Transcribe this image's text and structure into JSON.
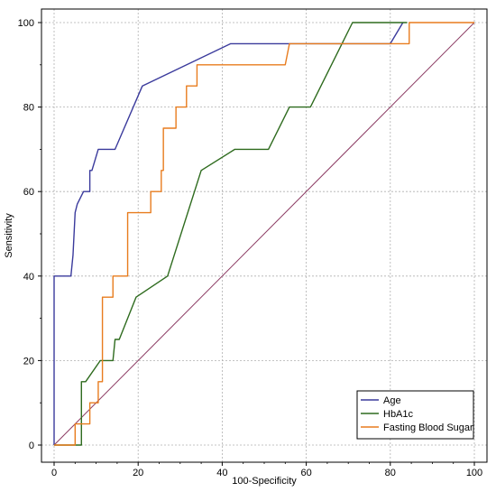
{
  "chart_data": {
    "type": "line",
    "xlabel": "100-Specificity",
    "ylabel": "Sensitivity",
    "xlim": [
      0,
      100
    ],
    "ylim": [
      0,
      100
    ],
    "xticks": [
      0,
      20,
      40,
      60,
      80,
      100
    ],
    "yticks": [
      0,
      20,
      40,
      60,
      80,
      100
    ],
    "grid": true,
    "legend_position": "bottom-right",
    "reference_line": {
      "x": [
        0,
        100
      ],
      "y": [
        0,
        100
      ],
      "color": "#8b3a62"
    },
    "series": [
      {
        "name": "Age",
        "color": "#3a3a9c",
        "x": [
          0,
          0,
          4,
          4.5,
          5,
          5.5,
          7,
          8.5,
          8.5,
          9,
          10.5,
          10.5,
          14.5,
          21,
          42,
          56,
          80,
          83
        ],
        "y": [
          0,
          40,
          40,
          45,
          55,
          57,
          60,
          60,
          65,
          65,
          70,
          70,
          70,
          85,
          95,
          95,
          95,
          100
        ]
      },
      {
        "name": "HbA1c",
        "color": "#2e6b1e",
        "x": [
          0,
          6.5,
          6.5,
          7.5,
          11,
          14,
          14.5,
          15.5,
          19.5,
          27,
          35,
          43,
          51,
          56,
          61,
          71,
          84
        ],
        "y": [
          0,
          0,
          15,
          15,
          20,
          20,
          25,
          25,
          35,
          40,
          65,
          70,
          70,
          80,
          80,
          100,
          100
        ]
      },
      {
        "name": "Fasting Blood Sugar",
        "color": "#e87c1e",
        "x": [
          0,
          5,
          5,
          8.5,
          8.5,
          10.5,
          10.5,
          11.5,
          11.5,
          14,
          14,
          17.5,
          17.5,
          23,
          23,
          25.5,
          25.5,
          26,
          26,
          29,
          29,
          31.5,
          31.5,
          34,
          34,
          35.5,
          35.5,
          37,
          37,
          55,
          56,
          84.5,
          84.5,
          100
        ],
        "y": [
          0,
          0,
          5,
          5,
          10,
          10,
          15,
          15,
          35,
          35,
          40,
          40,
          55,
          55,
          60,
          60,
          65,
          65,
          75,
          75,
          80,
          80,
          85,
          85,
          90,
          90,
          90,
          90,
          90,
          90,
          95,
          95,
          100,
          100
        ]
      }
    ]
  }
}
